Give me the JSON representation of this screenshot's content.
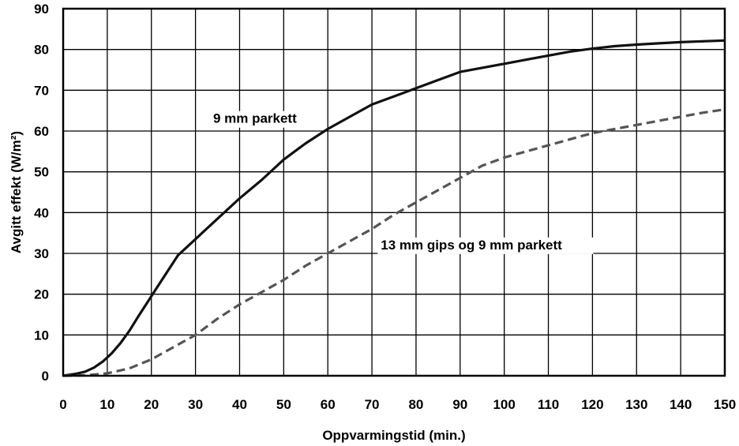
{
  "chart_data": {
    "type": "line",
    "title": "",
    "xlabel": "Oppvarmingstid (min.)",
    "ylabel": "Avgitt effekt (W/m²)",
    "xlim": [
      0,
      150
    ],
    "ylim": [
      0,
      90
    ],
    "xticks": [
      "0",
      "10",
      "20",
      "30",
      "40",
      "50",
      "60",
      "70",
      "80",
      "90",
      "100",
      "110",
      "120",
      "130",
      "140",
      "150"
    ],
    "yticks": [
      "0",
      "10",
      "20",
      "30",
      "40",
      "50",
      "60",
      "70",
      "80",
      "90"
    ],
    "grid": true,
    "legend": "none",
    "series": [
      {
        "name": "9 mm parkett",
        "color": "#111111",
        "style": "solid",
        "x": [
          0,
          3,
          5,
          7,
          9,
          11,
          13,
          15,
          17,
          20,
          23,
          26,
          30,
          35,
          40,
          45,
          50,
          55,
          60,
          65,
          70,
          75,
          80,
          85,
          90,
          95,
          100,
          105,
          110,
          115,
          120,
          125,
          130,
          135,
          140,
          145,
          150
        ],
        "values": [
          0,
          0.5,
          1,
          2,
          3.5,
          5.5,
          8,
          11,
          14.5,
          19.5,
          24.5,
          29.5,
          33.5,
          38.5,
          43.5,
          48,
          53,
          57,
          60.5,
          63.5,
          66.5,
          68.5,
          70.5,
          72.5,
          74.5,
          75.5,
          76.5,
          77.5,
          78.5,
          79.5,
          80.2,
          80.8,
          81.2,
          81.5,
          81.8,
          82,
          82.2
        ]
      },
      {
        "name": "13 mm gips og 9 mm parkett",
        "color": "#555555",
        "style": "dashed",
        "x": [
          0,
          5,
          10,
          15,
          20,
          25,
          30,
          35,
          40,
          45,
          50,
          55,
          60,
          65,
          70,
          75,
          80,
          85,
          90,
          95,
          100,
          105,
          110,
          115,
          120,
          125,
          130,
          135,
          140,
          145,
          150
        ],
        "values": [
          0,
          0.1,
          0.6,
          1.8,
          4,
          7,
          10,
          14,
          17.5,
          20.5,
          23.5,
          27,
          30,
          33,
          36,
          39.5,
          42.5,
          45.5,
          48.5,
          51.5,
          53.5,
          55,
          56.5,
          58,
          59.5,
          60.5,
          61.5,
          62.5,
          63.5,
          64.5,
          65.3
        ]
      }
    ],
    "annotations": [
      {
        "text": "9 mm parkett",
        "x": 34,
        "y": 62
      },
      {
        "text": "13 mm gips og 9 mm parkett",
        "x": 72,
        "y": 31
      }
    ]
  }
}
